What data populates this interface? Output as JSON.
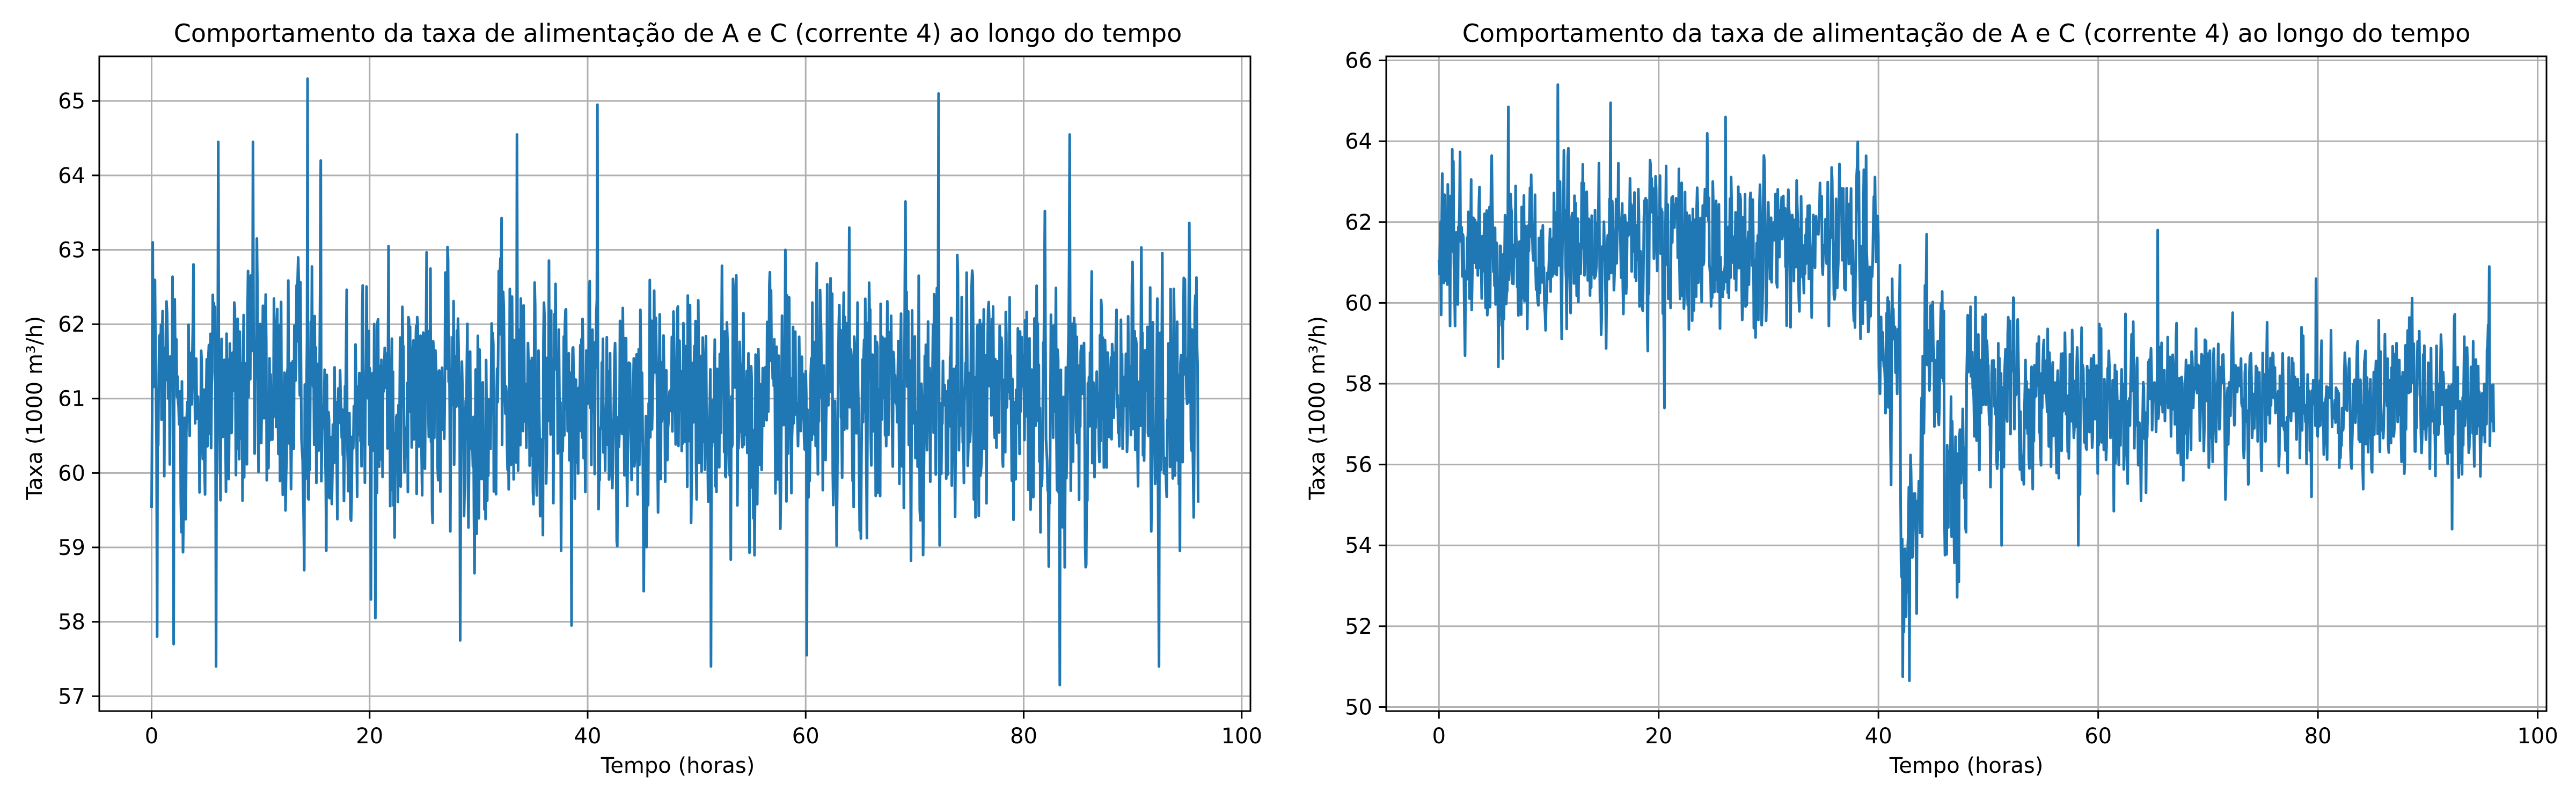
{
  "chart_data": [
    {
      "type": "line",
      "title": "Comportamento da taxa de alimentação de A e C (corrente 4) ao longo do tempo",
      "xlabel": "Tempo (horas)",
      "ylabel": "Taxa (1000 m³/h)",
      "xlim": [
        -4.8,
        100.8
      ],
      "ylim": [
        56.8,
        65.6
      ],
      "xticks": [
        0,
        20,
        40,
        60,
        80,
        100
      ],
      "yticks": [
        57,
        58,
        59,
        60,
        61,
        62,
        63,
        64,
        65
      ],
      "grid": true,
      "color": "#1f77b4",
      "series": [
        {
          "x_range": [
            0,
            96
          ],
          "segments": [
            {
              "x_start": 0,
              "x_end": 96,
              "mean": 61.0,
              "amplitude": 0.8
            }
          ],
          "extrema": [
            {
              "x": 0.1,
              "y": 63.1
            },
            {
              "x": 0.5,
              "y": 57.8
            },
            {
              "x": 2.0,
              "y": 57.7
            },
            {
              "x": 5.9,
              "y": 57.4
            },
            {
              "x": 6.1,
              "y": 64.45
            },
            {
              "x": 9.3,
              "y": 64.45
            },
            {
              "x": 14.3,
              "y": 65.3
            },
            {
              "x": 15.5,
              "y": 64.2
            },
            {
              "x": 20.1,
              "y": 58.3
            },
            {
              "x": 20.5,
              "y": 58.05
            },
            {
              "x": 28.3,
              "y": 57.75
            },
            {
              "x": 33.5,
              "y": 64.55
            },
            {
              "x": 38.5,
              "y": 57.95
            },
            {
              "x": 40.9,
              "y": 64.95
            },
            {
              "x": 51.3,
              "y": 57.4
            },
            {
              "x": 60.1,
              "y": 57.55
            },
            {
              "x": 72.2,
              "y": 65.1
            },
            {
              "x": 83.3,
              "y": 57.15
            },
            {
              "x": 84.2,
              "y": 64.55
            },
            {
              "x": 92.4,
              "y": 57.4
            },
            {
              "x": 96.0,
              "y": 59.6
            }
          ]
        }
      ]
    },
    {
      "type": "line",
      "title": "Comportamento da taxa de alimentação de A e C (corrente 4) ao longo do tempo",
      "xlabel": "Tempo (horas)",
      "ylabel": "Taxa (1000 m³/h)",
      "xlim": [
        -4.8,
        100.8
      ],
      "ylim": [
        49.9,
        66.1
      ],
      "xticks": [
        0,
        20,
        40,
        60,
        80,
        100
      ],
      "yticks": [
        50,
        52,
        54,
        56,
        58,
        60,
        62,
        64,
        66
      ],
      "grid": true,
      "color": "#1f77b4",
      "series": [
        {
          "x_range": [
            0,
            96
          ],
          "segments": [
            {
              "x_start": 0,
              "x_end": 40,
              "mean": 61.3,
              "amplitude": 0.95
            },
            {
              "x_start": 40,
              "x_end": 42,
              "mean": 58.5,
              "amplitude": 1.0
            },
            {
              "x_start": 42,
              "x_end": 44,
              "mean": 53.8,
              "amplitude": 1.2
            },
            {
              "x_start": 44,
              "x_end": 46,
              "mean": 58.5,
              "amplitude": 1.0
            },
            {
              "x_start": 46,
              "x_end": 48,
              "mean": 55.5,
              "amplitude": 1.0
            },
            {
              "x_start": 48,
              "x_end": 50,
              "mean": 58.5,
              "amplitude": 1.0
            },
            {
              "x_start": 50,
              "x_end": 96,
              "mean": 57.6,
              "amplitude": 0.9
            }
          ],
          "extrema": [
            {
              "x": 0.2,
              "y": 59.7
            },
            {
              "x": 1.2,
              "y": 63.8
            },
            {
              "x": 6.3,
              "y": 64.85
            },
            {
              "x": 10.8,
              "y": 65.4
            },
            {
              "x": 15.6,
              "y": 64.95
            },
            {
              "x": 20.5,
              "y": 57.4
            },
            {
              "x": 26.1,
              "y": 64.6
            },
            {
              "x": 38.2,
              "y": 63.25
            },
            {
              "x": 42.2,
              "y": 50.75
            },
            {
              "x": 42.8,
              "y": 50.65
            },
            {
              "x": 44.4,
              "y": 61.7
            },
            {
              "x": 47.3,
              "y": 53.1
            },
            {
              "x": 51.2,
              "y": 54.0
            },
            {
              "x": 58.2,
              "y": 54.0
            },
            {
              "x": 65.4,
              "y": 61.8
            },
            {
              "x": 79.8,
              "y": 60.6
            },
            {
              "x": 92.2,
              "y": 54.4
            },
            {
              "x": 95.6,
              "y": 60.9
            },
            {
              "x": 96.0,
              "y": 56.8
            }
          ]
        }
      ]
    }
  ]
}
